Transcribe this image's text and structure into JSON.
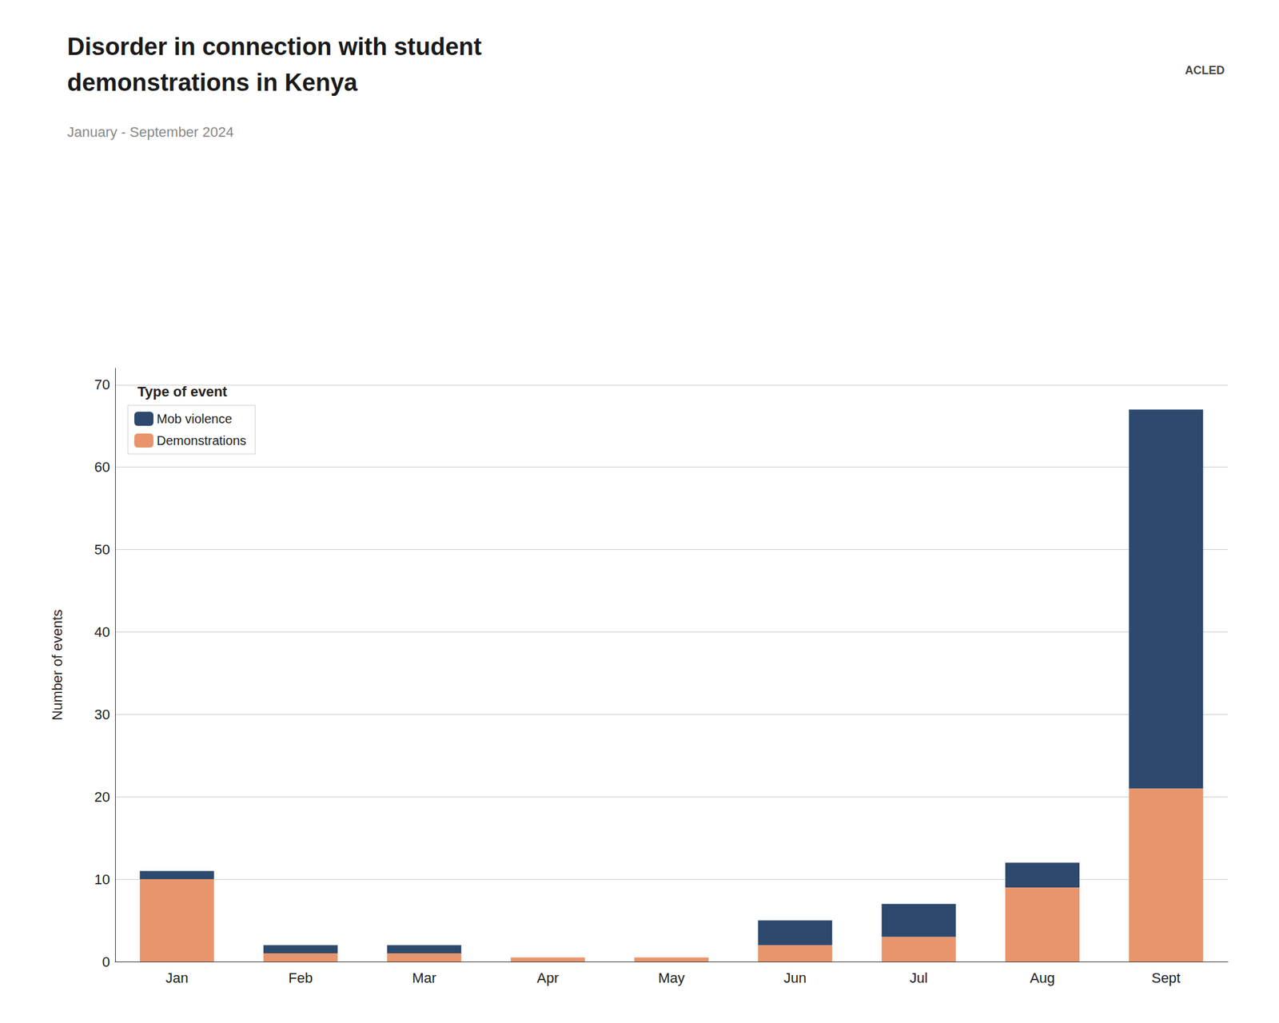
{
  "chart_data": {
    "type": "bar",
    "stacked": true,
    "title": "Disorder in connection with student\ndemonstrations in Kenya",
    "subtitle": "January - September 2024",
    "ylabel": "Number of events",
    "annotations": [
      "ACLED"
    ],
    "legend_title": "Type of event",
    "legend": "upper left",
    "categories": [
      "Jan",
      "Feb",
      "Mar",
      "Apr",
      "May",
      "Jun",
      "Jul",
      "Aug",
      "Sept"
    ],
    "series": [
      {
        "name": "Demonstrations",
        "color": "#e8956d",
        "values": [
          10,
          1,
          1,
          0.5,
          0.5,
          2,
          3,
          9,
          21
        ]
      },
      {
        "name": "Mob violence",
        "color": "#2d4a6e",
        "values": [
          1,
          1,
          1,
          0,
          0,
          3,
          4,
          3,
          46
        ]
      }
    ],
    "ylim": [
      0,
      72
    ],
    "yticks": [
      0,
      10,
      20,
      30,
      40,
      50,
      60,
      70
    ],
    "grid": true
  }
}
